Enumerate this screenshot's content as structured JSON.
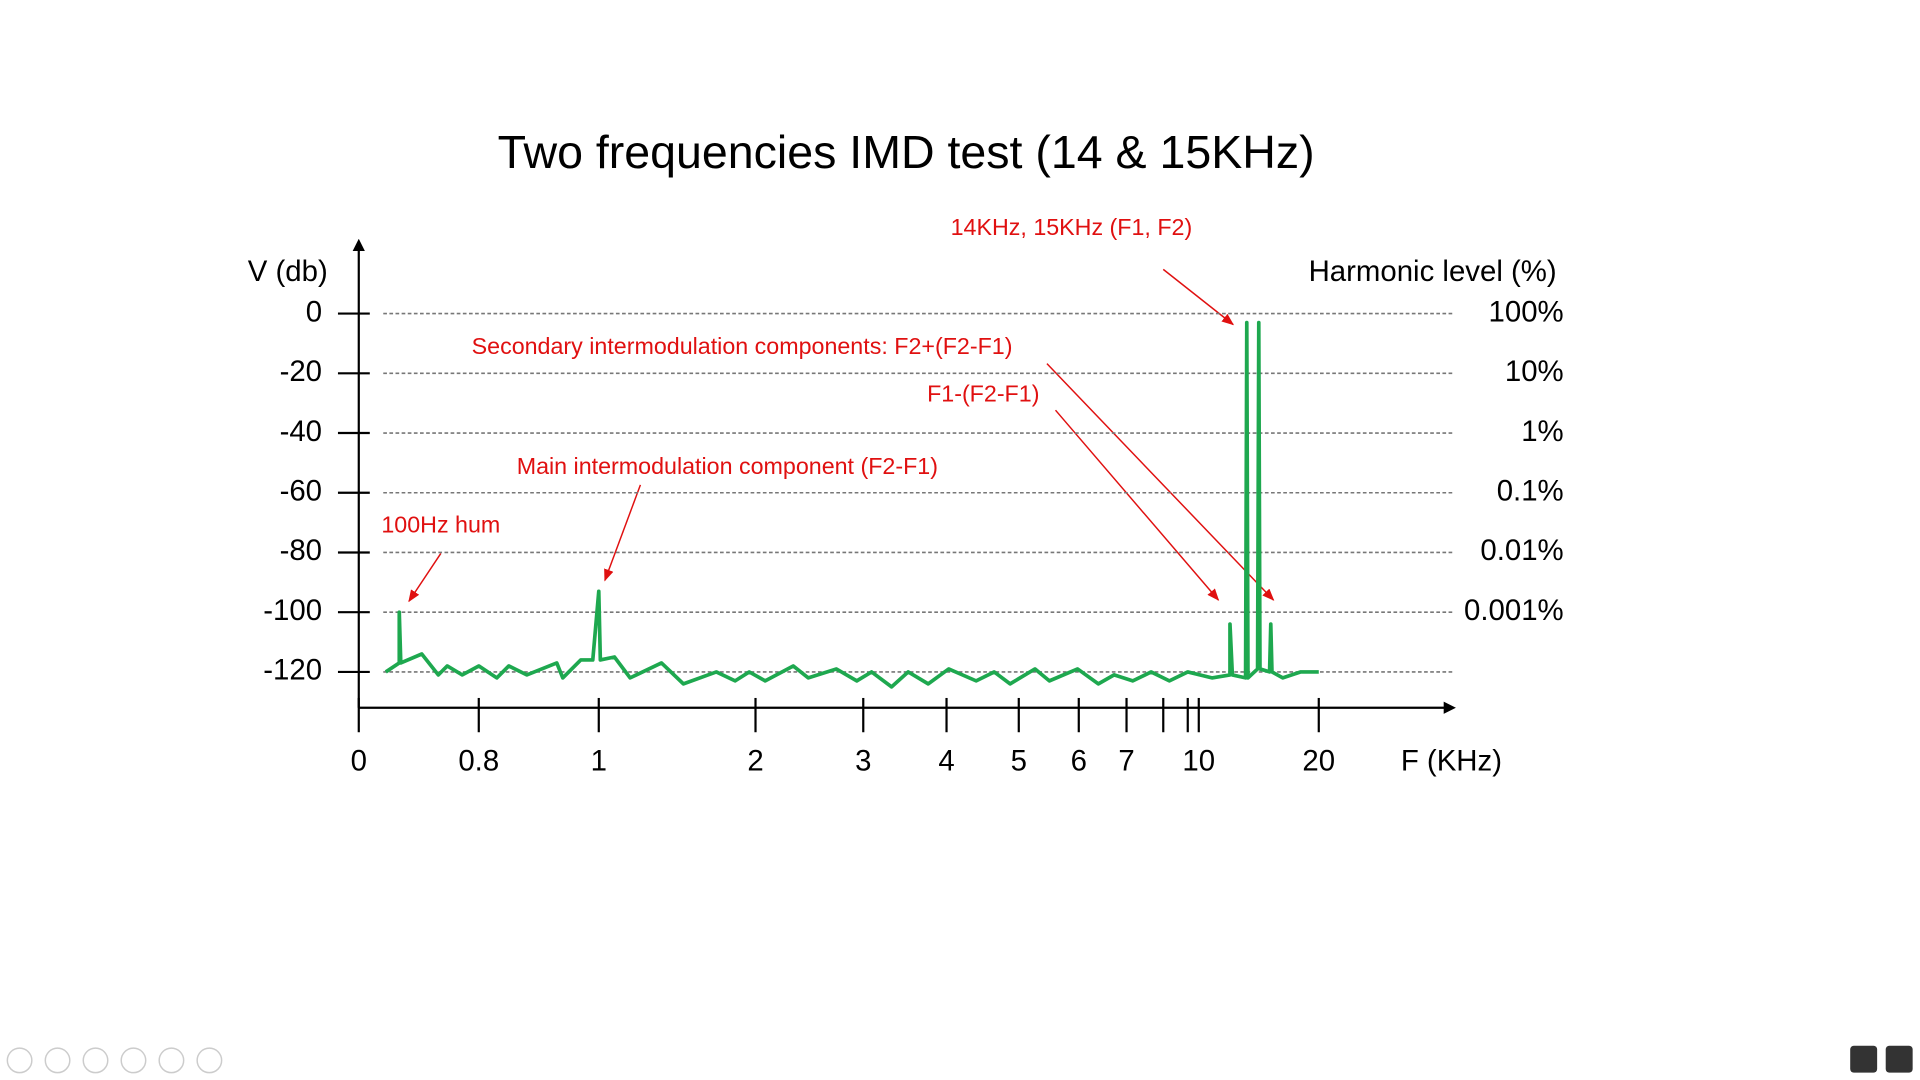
{
  "chart_data": {
    "type": "line",
    "title": "Two frequencies IMD test (14 & 15KHz)",
    "y_label": "V (db)",
    "y2_label": "Harmonic level (%)",
    "x_label": "F (KHz)",
    "x": [
      0.18,
      0.27,
      0.27,
      0.28,
      0.42,
      0.53,
      0.59,
      0.69,
      0.8,
      0.83,
      0.85,
      0.88,
      0.93,
      0.94,
      0.97,
      0.99,
      1.0,
      1.01,
      1.1,
      1.2,
      1.4,
      1.54,
      1.75,
      1.87,
      1.96,
      2.09,
      2.35,
      2.49,
      2.75,
      2.94,
      3.1,
      3.34,
      3.54,
      3.78,
      4.03,
      4.41,
      4.66,
      4.88,
      5.27,
      5.51,
      5.98,
      6.41,
      6.74,
      7.17,
      7.67,
      8.25,
      9.0,
      11.1,
      12.6,
      12.6,
      12.8,
      13.9,
      14.0,
      14.1,
      14.9,
      15.0,
      15.1,
      15.9,
      16.0,
      16.1,
      17.0,
      18.5,
      20
    ],
    "series": [
      {
        "color": "#1ea84f",
        "values": [
          -120,
          -117,
          -100,
          -117,
          -114,
          -121,
          -118,
          -121,
          -118,
          -122,
          -118,
          -121,
          -117,
          -122,
          -116,
          -116,
          -93,
          -116,
          -115,
          -122,
          -117,
          -124,
          -120,
          -123,
          -120,
          -123,
          -118,
          -122,
          -119,
          -123,
          -120,
          -125,
          -120,
          -124,
          -119,
          -123,
          -120,
          -124,
          -119,
          -123,
          -119,
          -124,
          -121,
          -123,
          -120,
          -123,
          -120,
          -122,
          -121,
          -104,
          -121,
          -122,
          -3,
          -122,
          -119,
          -3,
          -119,
          -120,
          -104,
          -120,
          -122,
          -120,
          -120
        ]
      }
    ],
    "xlim": [
      0,
      30
    ],
    "xticks": [
      0,
      0.8,
      1,
      2,
      3,
      4,
      5,
      6,
      7,
      10,
      20
    ],
    "xminorticks": [
      8,
      9
    ],
    "ylim": [
      -132,
      23
    ],
    "yticks": [
      0,
      -20,
      -40,
      -60,
      -80,
      -100,
      -120
    ],
    "y2log": true,
    "y2lim": [
      2.51e-05,
      1413
    ],
    "y2ticks": [
      {
        "value": 100,
        "label": "100%"
      },
      {
        "value": 10,
        "label": "10%"
      },
      {
        "value": 1,
        "label": "1%"
      },
      {
        "value": 0.1,
        "label": "0.1%"
      },
      {
        "value": 0.01,
        "label": "0.01%"
      },
      {
        "value": 0.001,
        "label": "0.001%"
      }
    ],
    "grid": true,
    "annotations": [
      "14KHz, 15KHz (F1, F2)",
      "Secondary intermodulation components: F2+(F2-F1)",
      "F1-(F2-F1)",
      "Main intermodulation component (F2-F1)",
      "100Hz hum"
    ]
  }
}
